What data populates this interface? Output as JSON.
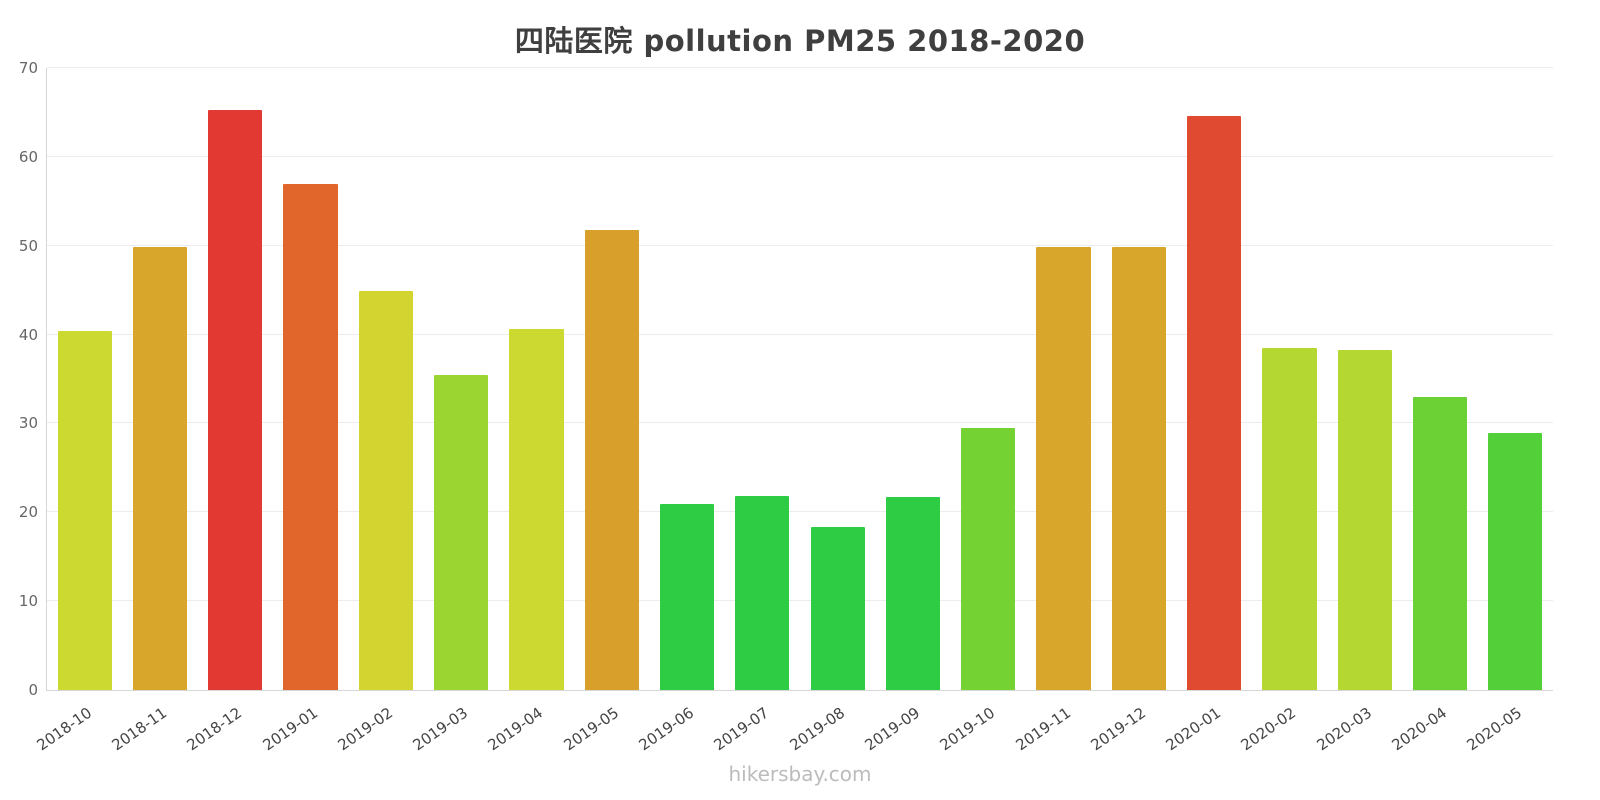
{
  "page": {
    "footer": "hikersbay.com"
  },
  "chart_data": {
    "type": "bar",
    "title": "四陆医院 pollution PM25 2018-2020",
    "xlabel": "",
    "ylabel": "",
    "ylim": [
      0,
      70
    ],
    "yticks": [
      0,
      10,
      20,
      30,
      40,
      50,
      60,
      70
    ],
    "grid": true,
    "legend": "none",
    "categories": [
      "2018-10",
      "2018-11",
      "2018-12",
      "2019-01",
      "2019-02",
      "2019-03",
      "2019-04",
      "2019-05",
      "2019-06",
      "2019-07",
      "2019-08",
      "2019-09",
      "2019-10",
      "2019-11",
      "2019-12",
      "2020-01",
      "2020-02",
      "2020-03",
      "2020-04",
      "2020-05"
    ],
    "values": [
      40.4,
      49.9,
      65.3,
      56.9,
      44.9,
      35.5,
      40.6,
      51.8,
      20.9,
      21.8,
      18.3,
      21.7,
      29.5,
      49.9,
      49.9,
      64.6,
      38.5,
      38.3,
      33.0,
      28.9
    ],
    "bar_colors": [
      "#ccd930",
      "#d8a62a",
      "#e23a32",
      "#e0662c",
      "#d4d430",
      "#9bd531",
      "#ccd930",
      "#d8a02b",
      "#2ecc44",
      "#2ecc44",
      "#2ecc44",
      "#2ecc44",
      "#74d233",
      "#d8a62a",
      "#d8a62a",
      "#e04a30",
      "#b5d731",
      "#b5d731",
      "#6cd134",
      "#53cf3a"
    ]
  }
}
